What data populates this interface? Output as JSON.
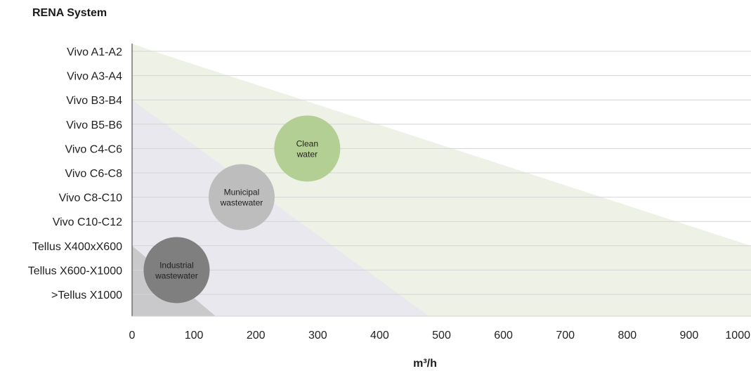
{
  "chart_data": {
    "type": "bubble-region",
    "title": "RENA System",
    "xlabel": "m³/h",
    "ylabel": "",
    "xlim": [
      0,
      1000
    ],
    "xticks": [
      0,
      100,
      200,
      300,
      400,
      500,
      600,
      700,
      800,
      900,
      1000
    ],
    "categories": [
      "Vivo A1-A2",
      "Vivo A3-A4",
      "Vivo B3-B4",
      "Vivo B5-B6",
      "Vivo C4-C6",
      "Vivo C6-C8",
      "Vivo C8-C10",
      "Vivo C10-C12",
      "Tellus X400xX600",
      "Tellus X600-X1000",
      ">Tellus X1000"
    ],
    "grid": true,
    "regions": [
      {
        "color": "#eef2e6",
        "points": [
          [
            35,
            "Vivo A1-A2"
          ],
          [
            1000,
            "Tellus X400xX600"
          ],
          [
            1000,
            "bottom"
          ],
          [
            0,
            "bottom"
          ],
          [
            0,
            "top"
          ]
        ]
      },
      {
        "color": "#e8e8ee",
        "points": [
          [
            0,
            "Vivo B3-B4"
          ],
          [
            480,
            "bottom"
          ],
          [
            0,
            "bottom"
          ]
        ]
      },
      {
        "color": "#c9c9cc",
        "points": [
          [
            0,
            "Tellus X400xX600"
          ],
          [
            135,
            "bottom"
          ],
          [
            0,
            "bottom"
          ]
        ]
      }
    ],
    "bubbles": [
      {
        "label": [
          "Clean",
          "water"
        ],
        "x": 283,
        "category": "Vivo C4-C6",
        "color": "#b4cf93"
      },
      {
        "label": [
          "Municipal",
          "wastewater"
        ],
        "x": 177,
        "category": "Vivo C8-C10",
        "color": "#bdbdbd"
      },
      {
        "label": [
          "Industrial",
          "wastewater"
        ],
        "x": 72,
        "category": "Tellus X600-X1000",
        "color": "#7f7f7f"
      }
    ]
  }
}
